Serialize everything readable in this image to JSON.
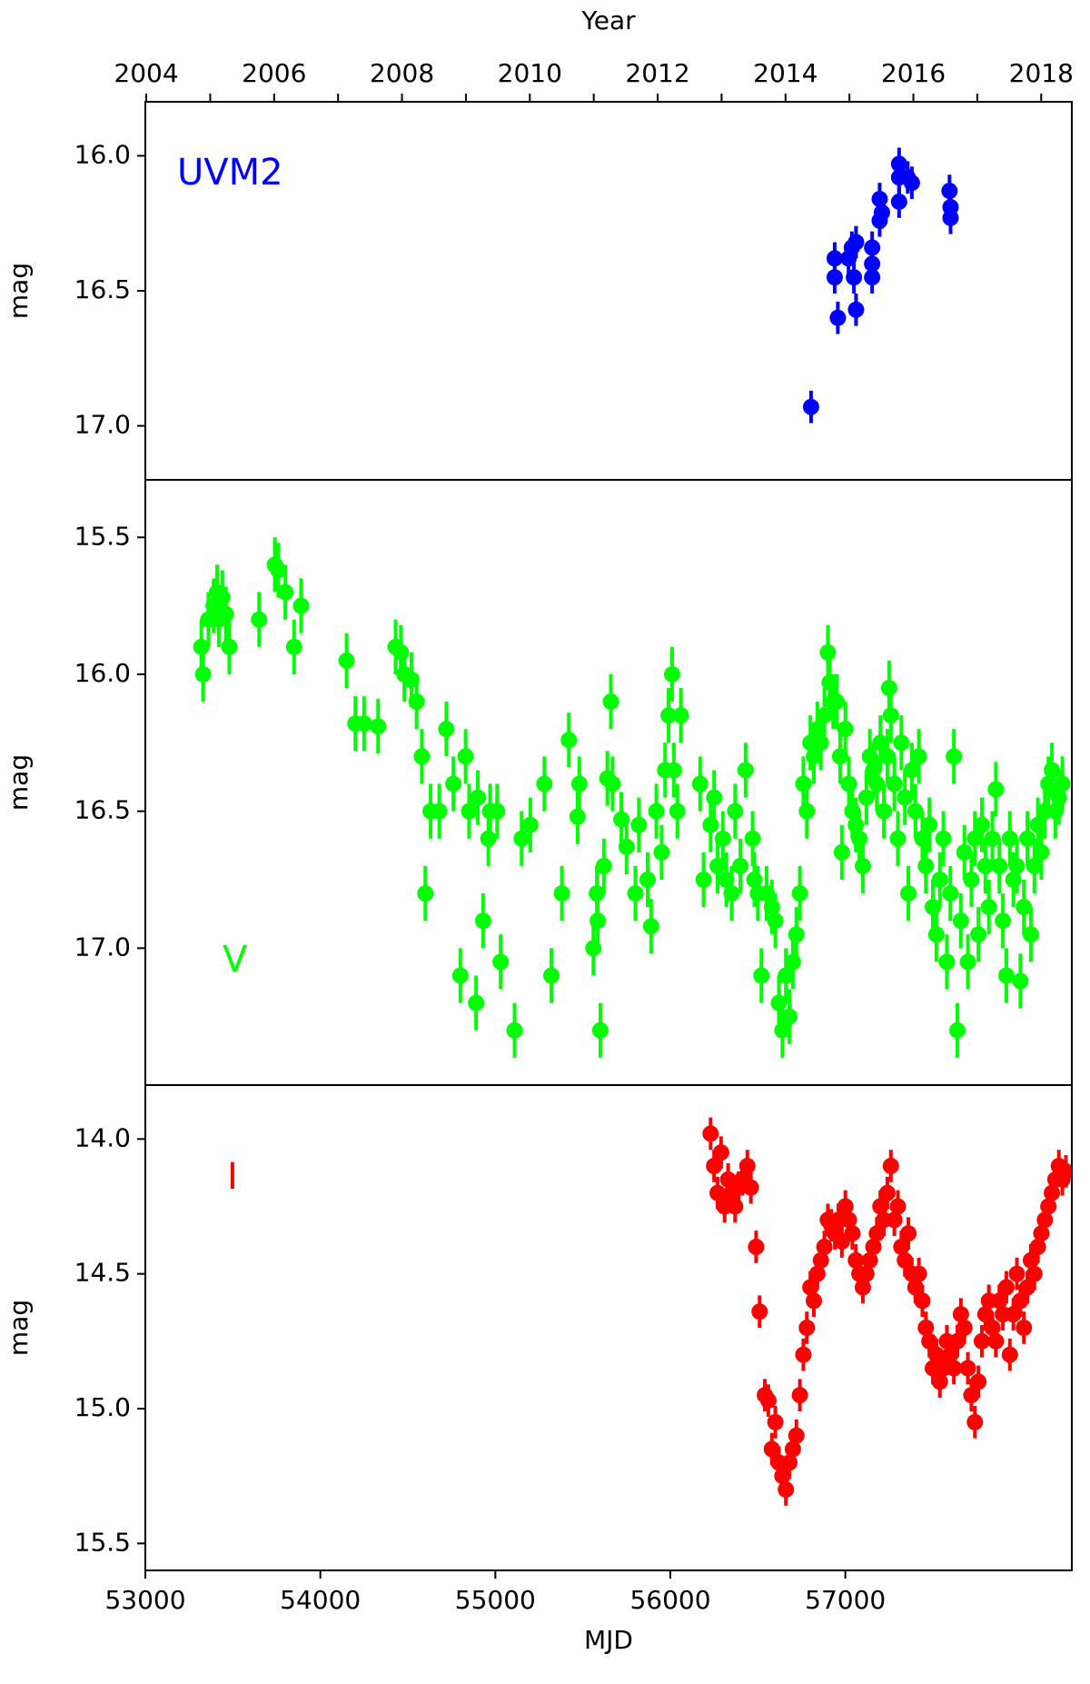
{
  "chart_data": [
    {
      "type": "scatter",
      "label": "UVM2",
      "color": "#0000ff",
      "ylabel": "mag",
      "x2label": "Year",
      "x2lim": [
        2003.985,
        2018.479
      ],
      "x2ticks": [
        2004,
        2006,
        2008,
        2010,
        2012,
        2014,
        2016,
        2018
      ],
      "x2minorticks": [
        2005,
        2007,
        2009,
        2011,
        2013,
        2015,
        2017
      ],
      "xlim": [
        53000,
        58294
      ],
      "ylim": [
        17.2,
        15.8
      ],
      "yticks": [
        {
          "value": 16,
          "label": "16.0"
        },
        {
          "value": 16.5,
          "label": "16.5"
        },
        {
          "value": 17,
          "label": "17.0"
        }
      ],
      "error": 0.06,
      "x": [
        56804,
        56939,
        56939,
        56957,
        57018,
        57037,
        57049,
        57061,
        57061,
        57153,
        57153,
        57153,
        57196,
        57196,
        57209,
        57307,
        57307,
        57307,
        57356,
        57380,
        57595,
        57601,
        57601
      ],
      "values": [
        16.93,
        16.38,
        16.45,
        16.6,
        16.38,
        16.34,
        16.45,
        16.57,
        16.32,
        16.34,
        16.4,
        16.45,
        16.16,
        16.24,
        16.21,
        16.03,
        16.08,
        16.17,
        16.08,
        16.1,
        16.13,
        16.19,
        16.23
      ]
    },
    {
      "type": "scatter",
      "label": "V",
      "color": "#00ff00",
      "ylabel": "mag",
      "xlim": [
        53000,
        58294
      ],
      "ylim": [
        17.5,
        15.29
      ],
      "yticks": [
        {
          "value": 15.5,
          "label": "15.5"
        },
        {
          "value": 16,
          "label": "16.0"
        },
        {
          "value": 16.5,
          "label": "16.5"
        },
        {
          "value": 17,
          "label": "17.0"
        }
      ],
      "error": 0.1,
      "x": [
        53320,
        53330,
        53360,
        53390,
        53410,
        53420,
        53440,
        53460,
        53480,
        53650,
        53740,
        53760,
        53800,
        53850,
        53890,
        54150,
        54200,
        54250,
        54330,
        54430,
        54460,
        54480,
        54520,
        54550,
        54580,
        54600,
        54630,
        54680,
        54720,
        54760,
        54800,
        54830,
        54850,
        54890,
        54900,
        54930,
        54960,
        54970,
        55010,
        55030,
        55110,
        55150,
        55200,
        55280,
        55320,
        55380,
        55420,
        55470,
        55480,
        55560,
        55580,
        55585,
        55600,
        55620,
        55640,
        55660,
        55670,
        55720,
        55750,
        55800,
        55820,
        55870,
        55890,
        55920,
        55950,
        55970,
        55990,
        56010,
        56020,
        56040,
        56060,
        56170,
        56190,
        56230,
        56250,
        56270,
        56300,
        56320,
        56350,
        56370,
        56400,
        56430,
        56470,
        56480,
        56500,
        56520,
        56550,
        56580,
        56600,
        56620,
        56640,
        56660,
        56680,
        56700,
        56720,
        56740,
        56760,
        56780,
        56800,
        56820,
        56840,
        56860,
        56880,
        56900,
        56910,
        56930,
        56950,
        56970,
        56980,
        57000,
        57020,
        57040,
        57060,
        57080,
        57100,
        57120,
        57140,
        57160,
        57180,
        57200,
        57220,
        57240,
        57250,
        57260,
        57280,
        57300,
        57320,
        57340,
        57360,
        57380,
        57400,
        57420,
        57440,
        57460,
        57480,
        57500,
        57520,
        57540,
        57560,
        57580,
        57600,
        57620,
        57640,
        57660,
        57680,
        57700,
        57720,
        57740,
        57760,
        57780,
        57800,
        57820,
        57840,
        57860,
        57880,
        57900,
        57920,
        57940,
        57960,
        57980,
        58000,
        58020,
        58040,
        58060,
        58080,
        58100,
        58120,
        58140,
        58160,
        58180,
        58200,
        58220,
        58240
      ],
      "values": [
        15.9,
        16.0,
        15.8,
        15.75,
        15.7,
        15.8,
        15.72,
        15.78,
        15.9,
        15.8,
        15.6,
        15.62,
        15.7,
        15.9,
        15.75,
        15.95,
        16.18,
        16.18,
        16.19,
        15.9,
        15.92,
        16.0,
        16.02,
        16.1,
        16.3,
        16.8,
        16.5,
        16.5,
        16.2,
        16.4,
        17.1,
        16.3,
        16.5,
        17.2,
        16.45,
        16.9,
        16.6,
        16.5,
        16.5,
        17.05,
        17.3,
        16.6,
        16.55,
        16.4,
        17.1,
        16.8,
        16.24,
        16.52,
        16.4,
        17.0,
        16.8,
        16.9,
        17.3,
        16.7,
        16.38,
        16.1,
        16.4,
        16.53,
        16.63,
        16.8,
        16.55,
        16.75,
        16.92,
        16.5,
        16.65,
        16.35,
        16.15,
        16.0,
        16.35,
        16.5,
        16.15,
        16.4,
        16.75,
        16.55,
        16.45,
        16.7,
        16.6,
        16.75,
        16.8,
        16.5,
        16.7,
        16.35,
        16.6,
        16.75,
        16.8,
        17.1,
        16.8,
        16.85,
        16.9,
        17.2,
        17.3,
        17.1,
        17.25,
        17.05,
        16.95,
        16.8,
        16.4,
        16.5,
        16.25,
        16.3,
        16.2,
        16.25,
        16.15,
        15.92,
        16.03,
        16.1,
        16.1,
        16.3,
        16.65,
        16.2,
        16.4,
        16.5,
        16.55,
        16.6,
        16.7,
        16.45,
        16.3,
        16.35,
        16.4,
        16.25,
        16.5,
        16.3,
        16.05,
        16.15,
        16.4,
        16.6,
        16.25,
        16.45,
        16.8,
        16.35,
        16.5,
        16.3,
        16.6,
        16.7,
        16.55,
        16.85,
        16.95,
        16.75,
        16.6,
        17.05,
        16.8,
        16.3,
        17.3,
        16.9,
        16.65,
        17.05,
        16.75,
        16.6,
        16.95,
        16.55,
        16.7,
        16.85,
        16.6,
        16.42,
        16.7,
        16.9,
        17.1,
        16.6,
        16.75,
        16.7,
        17.12,
        16.85,
        16.6,
        16.95,
        16.7,
        16.55,
        16.65,
        16.5,
        16.4,
        16.35,
        16.5,
        16.45,
        16.4
      ]
    },
    {
      "type": "scatter",
      "label": "I",
      "color": "#ff0000",
      "ylabel": "mag",
      "xlabel": "MJD",
      "xlim": [
        53000,
        58294
      ],
      "xticks": [
        53000,
        54000,
        55000,
        56000,
        57000
      ],
      "ylim": [
        15.6,
        13.8
      ],
      "yticks": [
        {
          "value": 14,
          "label": "14.0"
        },
        {
          "value": 14.5,
          "label": "14.5"
        },
        {
          "value": 15,
          "label": "15.0"
        },
        {
          "value": 15.5,
          "label": "15.5"
        }
      ],
      "error": 0.06,
      "x": [
        56230,
        56250,
        56270,
        56290,
        56310,
        56330,
        56350,
        56370,
        56390,
        56410,
        56440,
        56460,
        56490,
        56510,
        56540,
        56560,
        56580,
        56600,
        56620,
        56640,
        56660,
        56680,
        56700,
        56720,
        56740,
        56760,
        56780,
        56800,
        56820,
        56840,
        56860,
        56880,
        56900,
        56920,
        56940,
        56960,
        56980,
        57000,
        57020,
        57040,
        57060,
        57080,
        57100,
        57120,
        57140,
        57160,
        57180,
        57200,
        57220,
        57240,
        57260,
        57280,
        57300,
        57320,
        57340,
        57360,
        57380,
        57400,
        57420,
        57440,
        57460,
        57480,
        57500,
        57520,
        57540,
        57560,
        57580,
        57600,
        57620,
        57640,
        57660,
        57680,
        57700,
        57720,
        57740,
        57760,
        57780,
        57800,
        57820,
        57840,
        57860,
        57880,
        57900,
        57920,
        57940,
        57960,
        57980,
        58000,
        58020,
        58040,
        58060,
        58080,
        58100,
        58120,
        58140,
        58160,
        58180,
        58200,
        58220,
        58240,
        58260
      ],
      "values": [
        13.98,
        14.1,
        14.2,
        14.05,
        14.25,
        14.15,
        14.2,
        14.25,
        14.18,
        14.15,
        14.1,
        14.18,
        14.4,
        14.64,
        14.95,
        14.97,
        15.15,
        15.05,
        15.2,
        15.25,
        15.3,
        15.2,
        15.15,
        15.1,
        14.95,
        14.8,
        14.7,
        14.55,
        14.6,
        14.5,
        14.45,
        14.4,
        14.3,
        14.32,
        14.35,
        14.3,
        14.38,
        14.25,
        14.3,
        14.35,
        14.45,
        14.5,
        14.55,
        14.5,
        14.45,
        14.4,
        14.35,
        14.25,
        14.3,
        14.2,
        14.1,
        14.3,
        14.25,
        14.4,
        14.45,
        14.35,
        14.5,
        14.55,
        14.5,
        14.6,
        14.7,
        14.75,
        14.85,
        14.8,
        14.9,
        14.85,
        14.75,
        14.8,
        14.85,
        14.75,
        14.65,
        14.7,
        14.85,
        14.95,
        15.05,
        14.9,
        14.75,
        14.65,
        14.6,
        14.7,
        14.75,
        14.6,
        14.65,
        14.55,
        14.8,
        14.65,
        14.5,
        14.6,
        14.7,
        14.55,
        14.45,
        14.5,
        14.4,
        14.35,
        14.3,
        14.25,
        14.2,
        14.15,
        14.1,
        14.15,
        14.12
      ]
    }
  ]
}
